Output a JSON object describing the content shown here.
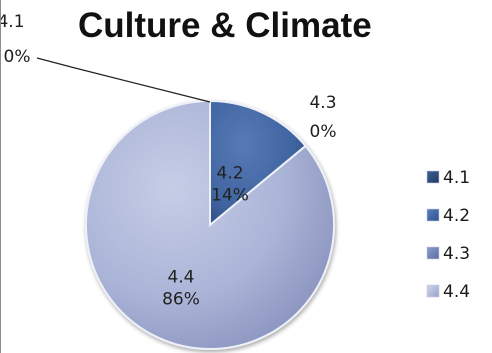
{
  "chart_data": {
    "type": "pie",
    "title": "Culture & Climate",
    "categories": [
      "4.1",
      "4.2",
      "4.3",
      "4.4"
    ],
    "values": [
      0,
      14,
      0,
      86
    ],
    "value_labels": [
      "0%",
      "14%",
      "0%",
      "86%"
    ],
    "colors": [
      "#2e4f7e",
      "#3f64a0",
      "#6b7eb3",
      "#a9b3d6"
    ],
    "legend": {
      "position": "right",
      "entries": [
        "4.1",
        "4.2",
        "4.3",
        "4.4"
      ]
    },
    "start_angle_deg": 0
  }
}
